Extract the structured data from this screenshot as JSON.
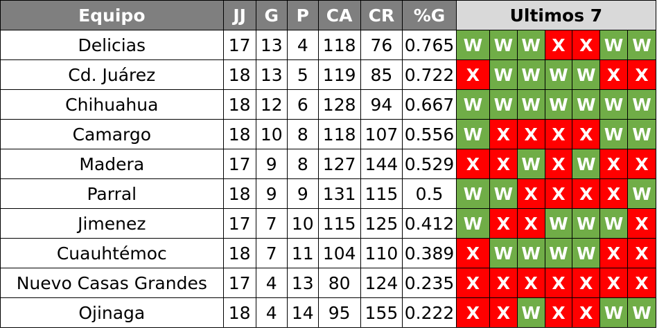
{
  "headers": {
    "team": "Equipo",
    "jj": "JJ",
    "g": "G",
    "p": "P",
    "ca": "CA",
    "cr": "CR",
    "pct": "%G",
    "last7": "Ultimos 7"
  },
  "colors": {
    "header_bg": "#7f7f7f",
    "last7_header_bg": "#d9d9d9",
    "win": "#70ad47",
    "loss": "#ff0000"
  },
  "rows": [
    {
      "team": "Delicias",
      "jj": "17",
      "g": "13",
      "p": "4",
      "ca": "118",
      "cr": "76",
      "pct": "0.765",
      "last7": [
        "W",
        "W",
        "W",
        "X",
        "X",
        "W",
        "W"
      ]
    },
    {
      "team": "Cd. Juárez",
      "jj": "18",
      "g": "13",
      "p": "5",
      "ca": "119",
      "cr": "85",
      "pct": "0.722",
      "last7": [
        "X",
        "W",
        "W",
        "W",
        "W",
        "X",
        "X"
      ]
    },
    {
      "team": "Chihuahua",
      "jj": "18",
      "g": "12",
      "p": "6",
      "ca": "128",
      "cr": "94",
      "pct": "0.667",
      "last7": [
        "W",
        "W",
        "W",
        "W",
        "W",
        "W",
        "W"
      ]
    },
    {
      "team": "Camargo",
      "jj": "18",
      "g": "10",
      "p": "8",
      "ca": "118",
      "cr": "107",
      "pct": "0.556",
      "last7": [
        "W",
        "X",
        "X",
        "X",
        "X",
        "W",
        "W"
      ]
    },
    {
      "team": "Madera",
      "jj": "17",
      "g": "9",
      "p": "8",
      "ca": "127",
      "cr": "144",
      "pct": "0.529",
      "last7": [
        "X",
        "X",
        "W",
        "X",
        "W",
        "X",
        "X"
      ]
    },
    {
      "team": "Parral",
      "jj": "18",
      "g": "9",
      "p": "9",
      "ca": "131",
      "cr": "115",
      "pct": "0.5",
      "last7": [
        "W",
        "W",
        "X",
        "X",
        "X",
        "X",
        "W"
      ]
    },
    {
      "team": "Jimenez",
      "jj": "17",
      "g": "7",
      "p": "10",
      "ca": "115",
      "cr": "125",
      "pct": "0.412",
      "last7": [
        "W",
        "X",
        "X",
        "W",
        "W",
        "W",
        "X"
      ]
    },
    {
      "team": "Cuauhtémoc",
      "jj": "18",
      "g": "7",
      "p": "11",
      "ca": "104",
      "cr": "110",
      "pct": "0.389",
      "last7": [
        "X",
        "W",
        "W",
        "W",
        "W",
        "X",
        "X"
      ]
    },
    {
      "team": "Nuevo Casas Grandes",
      "jj": "17",
      "g": "4",
      "p": "13",
      "ca": "80",
      "cr": "124",
      "pct": "0.235",
      "last7": [
        "X",
        "X",
        "X",
        "X",
        "X",
        "X",
        "X"
      ]
    },
    {
      "team": "Ojinaga",
      "jj": "18",
      "g": "4",
      "p": "14",
      "ca": "95",
      "cr": "155",
      "pct": "0.222",
      "last7": [
        "X",
        "X",
        "W",
        "X",
        "X",
        "W",
        "W"
      ]
    }
  ]
}
